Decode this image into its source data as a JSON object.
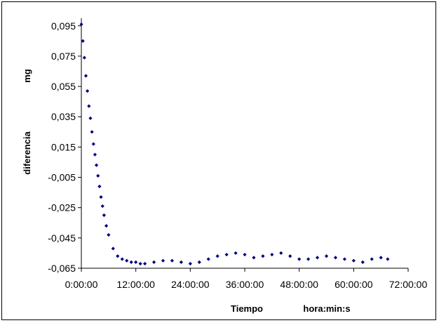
{
  "chart_data": {
    "type": "scatter",
    "xlabel": "Tiempo",
    "xlabel_unit": "hora:min:s",
    "ylabel": "diferencia",
    "ylabel_unit": "mg",
    "xlim_hours": [
      0,
      72
    ],
    "ylim": [
      -0.065,
      0.1
    ],
    "x_tick_labels": [
      "0:00:00",
      "12:00:00",
      "24:00:00",
      "36:00:00",
      "48:00:00",
      "60:00:00",
      "72:00:00"
    ],
    "y_tick_values": [
      0.095,
      0.075,
      0.055,
      0.035,
      0.015,
      -0.005,
      -0.025,
      -0.045,
      -0.065
    ],
    "y_tick_labels": [
      "0,095",
      "0,075",
      "0,055",
      "0,035",
      "0,015",
      "-0,005",
      "-0,025",
      "-0,045",
      "-0,065"
    ],
    "marker_color": "#000080",
    "grid": false,
    "legend": "none",
    "series": [
      {
        "x_hours": [
          0.0,
          0.33,
          0.67,
          1.0,
          1.33,
          1.67,
          2.0,
          2.33,
          2.67,
          3.0,
          3.33,
          3.67,
          4.0,
          4.33,
          4.67,
          5.0,
          5.5,
          6.0,
          7.0,
          8.0,
          9.0,
          10.0,
          11.0,
          12.0,
          13.0,
          14.0,
          16.0,
          18.0,
          20.0,
          22.0,
          24.0,
          26.0,
          28.0,
          30.0,
          32.0,
          34.0,
          36.0,
          38.0,
          40.0,
          42.0,
          44.0,
          46.0,
          48.0,
          50.0,
          52.0,
          54.0,
          56.0,
          58.0,
          60.0,
          62.0,
          64.0,
          66.0,
          67.5
        ],
        "y": [
          0.096,
          0.085,
          0.074,
          0.062,
          0.052,
          0.042,
          0.034,
          0.025,
          0.017,
          0.01,
          0.003,
          -0.004,
          -0.011,
          -0.018,
          -0.024,
          -0.03,
          -0.037,
          -0.043,
          -0.052,
          -0.057,
          -0.059,
          -0.06,
          -0.061,
          -0.061,
          -0.062,
          -0.062,
          -0.061,
          -0.06,
          -0.06,
          -0.061,
          -0.062,
          -0.061,
          -0.059,
          -0.057,
          -0.056,
          -0.055,
          -0.056,
          -0.058,
          -0.057,
          -0.056,
          -0.055,
          -0.057,
          -0.059,
          -0.059,
          -0.058,
          -0.057,
          -0.058,
          -0.059,
          -0.06,
          -0.061,
          -0.059,
          -0.058,
          -0.059
        ]
      }
    ]
  }
}
